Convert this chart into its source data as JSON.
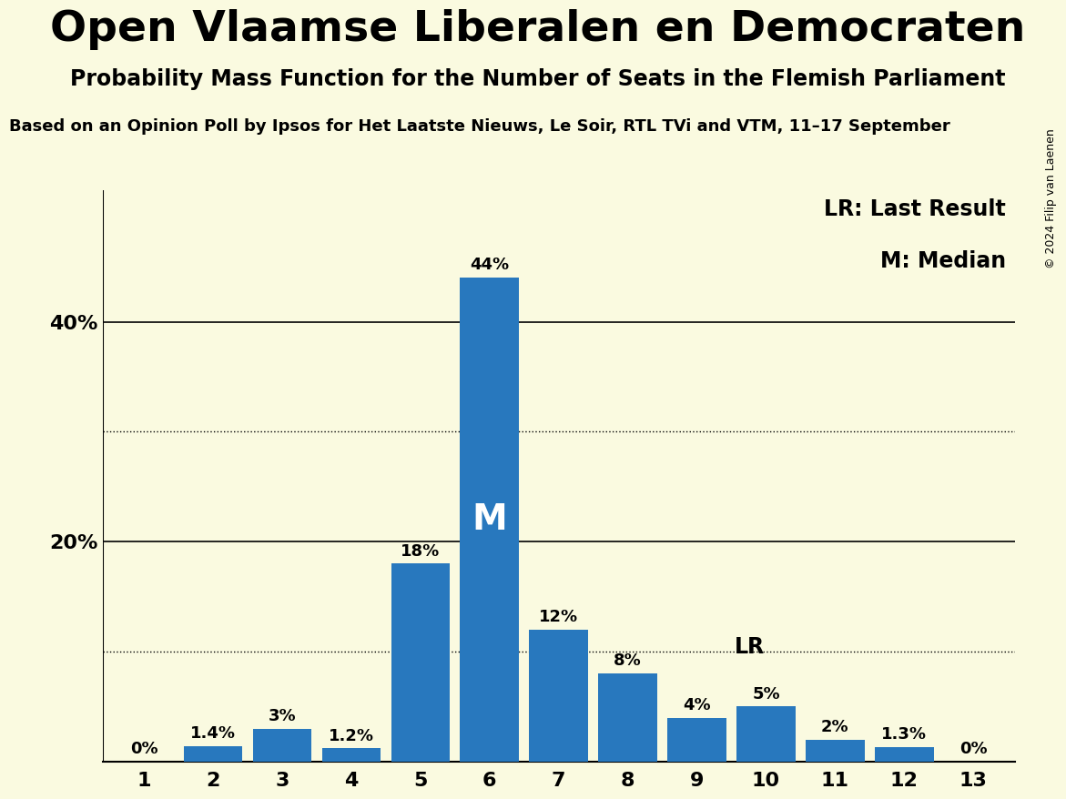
{
  "title": "Open Vlaamse Liberalen en Democraten",
  "subtitle": "Probability Mass Function for the Number of Seats in the Flemish Parliament",
  "source_line": "Based on an Opinion Poll by Ipsos for Het Laatste Nieuws, Le Soir, RTL TVi and VTM, 11–17 September",
  "copyright": "© 2024 Filip van Laenen",
  "categories": [
    1,
    2,
    3,
    4,
    5,
    6,
    7,
    8,
    9,
    10,
    11,
    12,
    13
  ],
  "values": [
    0.0,
    1.4,
    3.0,
    1.2,
    18.0,
    44.0,
    12.0,
    8.0,
    4.0,
    5.0,
    2.0,
    1.3,
    0.0
  ],
  "labels": [
    "0%",
    "1.4%",
    "3%",
    "1.2%",
    "18%",
    "44%",
    "12%",
    "8%",
    "4%",
    "5%",
    "2%",
    "1.3%",
    "0%"
  ],
  "bar_color": "#2878be",
  "background_color": "#fafae0",
  "median_bar": 6,
  "last_result_bar": 9,
  "median_label": "M",
  "last_result_label": "LR",
  "legend_lr": "LR: Last Result",
  "legend_m": "M: Median",
  "solid_grid_lines": [
    20,
    40
  ],
  "dotted_grid_lines": [
    10,
    30
  ],
  "ylim": [
    0,
    52
  ],
  "title_fontsize": 34,
  "subtitle_fontsize": 17,
  "source_fontsize": 13,
  "tick_fontsize": 16,
  "label_fontsize": 13
}
